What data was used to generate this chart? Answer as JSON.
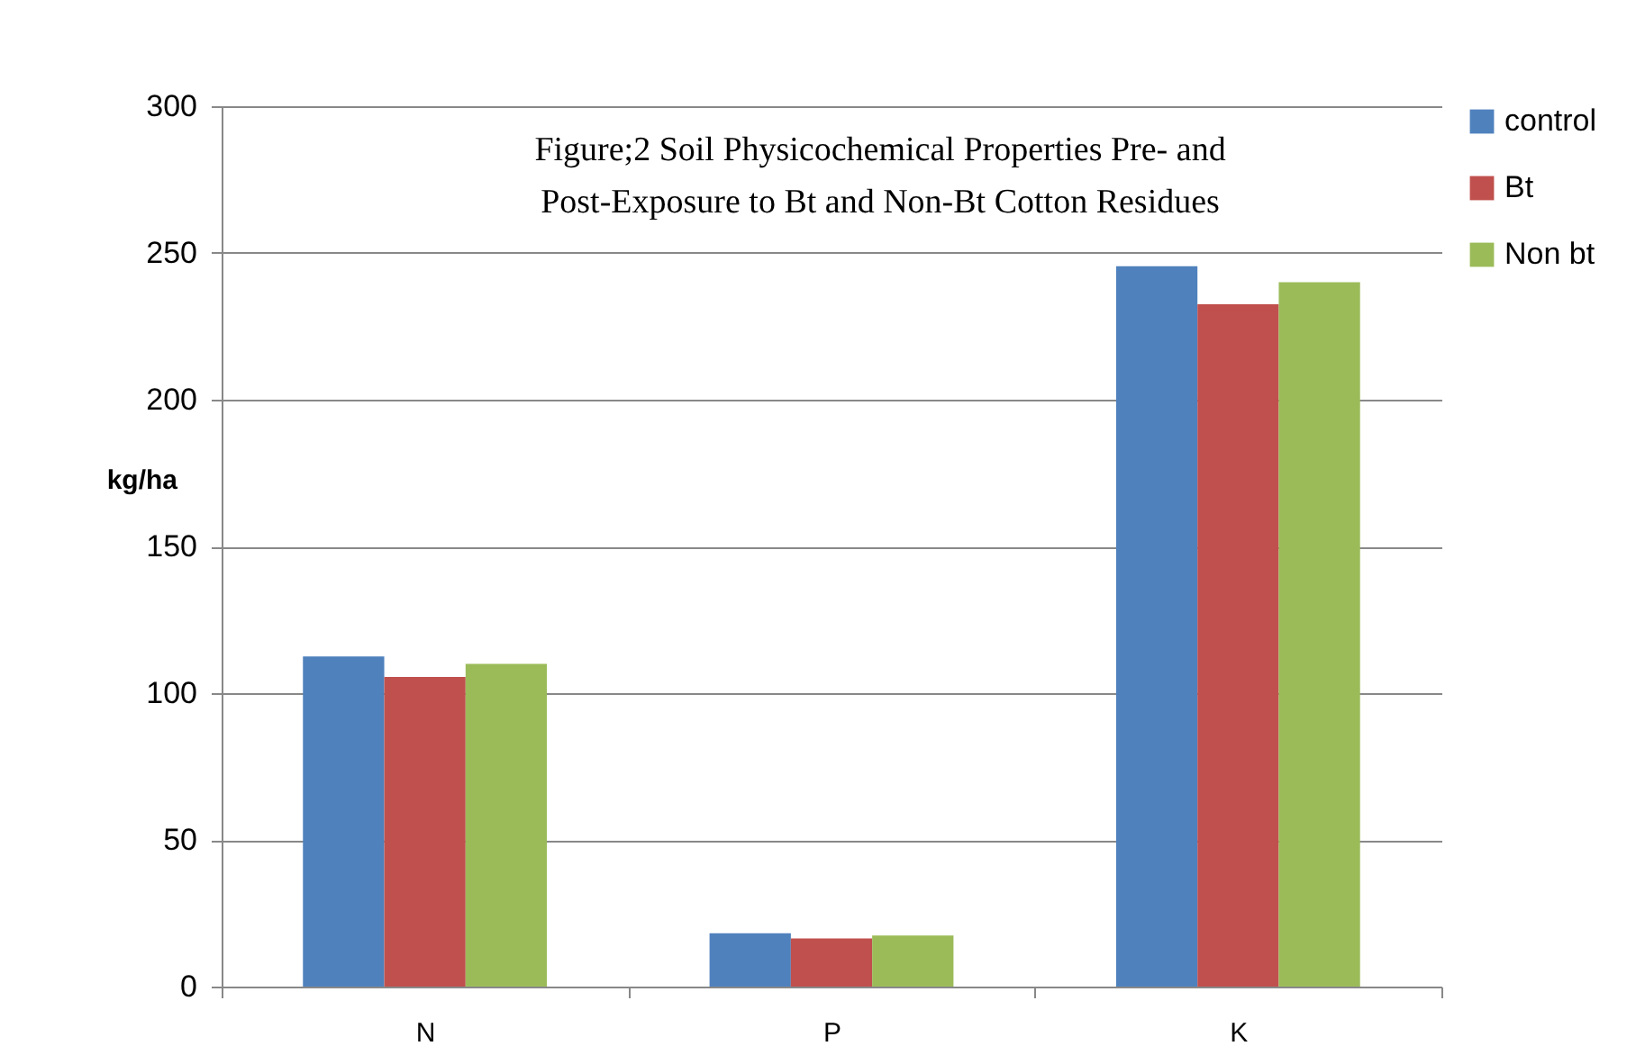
{
  "chart_data": {
    "type": "bar",
    "title": "Figure;2 Soil Physicochemical Properties Pre- and Post-Exposure to Bt and Non-Bt Cotton Residues",
    "ylabel": "kg/ha",
    "categories": [
      "N",
      "P",
      "K"
    ],
    "series": [
      {
        "name": "control",
        "color": "#4f81bd",
        "values": [
          112.5,
          18.2,
          245.5
        ]
      },
      {
        "name": "Bt",
        "color": "#c0504d",
        "values": [
          105.5,
          16.4,
          232.5
        ]
      },
      {
        "name": "Non bt",
        "color": "#9bbb59",
        "values": [
          110,
          17.4,
          240
        ]
      }
    ],
    "ylim": [
      0,
      300
    ],
    "yticks": [
      0,
      50,
      100,
      150,
      200,
      250,
      300
    ],
    "grid": "y",
    "legend": "right"
  }
}
